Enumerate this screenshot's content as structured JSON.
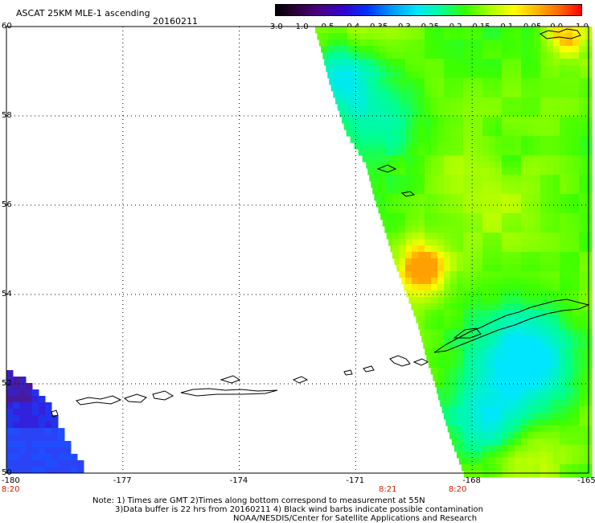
{
  "header": {
    "title": "ASCAT 25KM MLE-1 ascending",
    "date": "20160211"
  },
  "colorbar": {
    "labels": [
      "-3.0",
      "-1.0",
      "-0.5",
      "-0.4",
      "-0.35",
      "-0.3",
      "-0.25",
      "-0.2",
      "-0.15",
      "-0.1",
      "-0.05",
      "0.0",
      "1.0"
    ]
  },
  "map": {
    "lat_labels": [
      "60",
      "58",
      "56",
      "54",
      "52",
      "50"
    ],
    "lon_labels": [
      "-180",
      "-177",
      "-174",
      "-171",
      "-168",
      "-165"
    ],
    "time_labels": [
      {
        "lon": -180,
        "text": "8:20"
      },
      {
        "lon": -170.2,
        "text": "8:21"
      },
      {
        "lon": -168.4,
        "text": "8:20"
      }
    ],
    "colors": {
      "grid": "#000000",
      "coastline": "#000000",
      "time_label": "#cc2200"
    }
  },
  "notes": {
    "line1": "Note: 1) Times are GMT 2)Times along bottom correspond to measurement at 55N",
    "line2": "3)Data buffer is 22 hrs from 20160211 4) Black wind barbs indicate possible contamination",
    "line3": "NOAA/NESDIS/Center for Satellite Applications and Research"
  }
}
